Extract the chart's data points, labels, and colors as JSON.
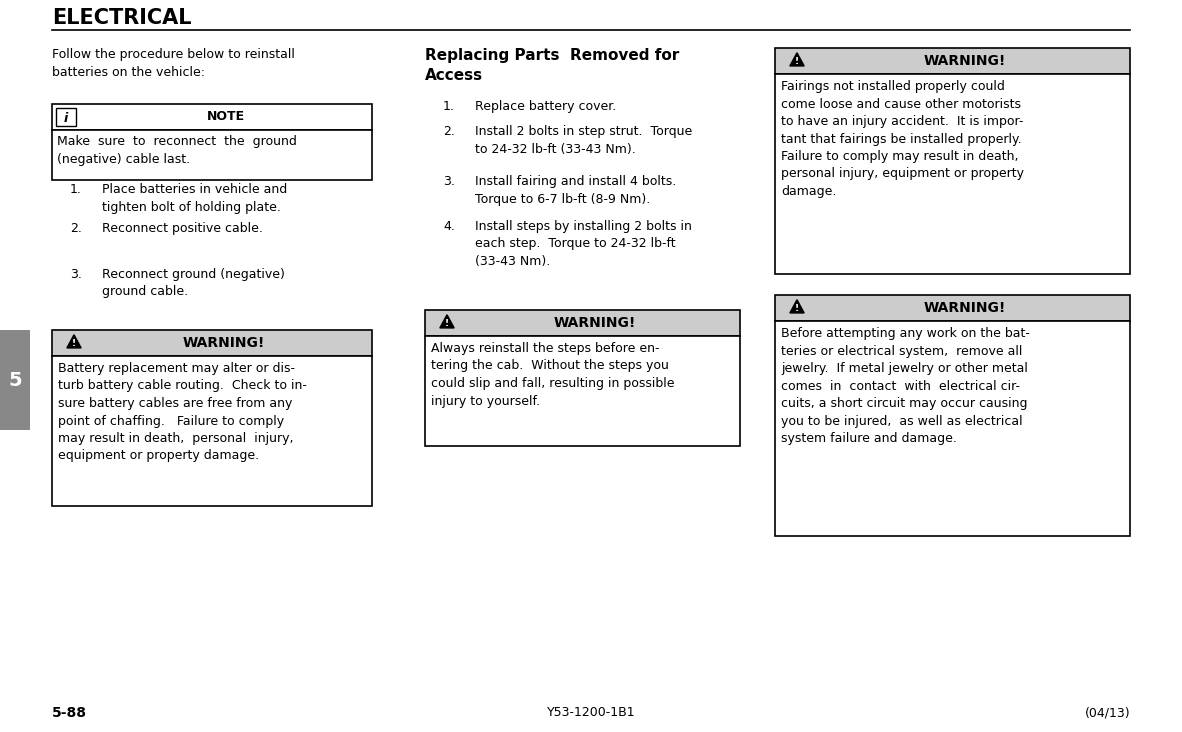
{
  "title": "ELECTRICAL",
  "page_num": "5-88",
  "doc_id": "Y53-1200-1B1",
  "doc_date": "(04/13)",
  "tab_number": "5",
  "bg_color": "#ffffff",
  "gray_header": "#cccccc",
  "border_color": "#000000",
  "warning1_body": "Battery replacement may alter or dis-\nturb battery cable routing.  Check to in-\nsure battery cables are free from any\npoint of chaffing.   Failure to comply\nmay result in death,  personal  injury,\nequipment or property damage.",
  "warning2_body": "Always reinstall the steps before en-\ntering the cab.  Without the steps you\ncould slip and fall, resulting in possible\ninjury to yourself.",
  "warning3_body": "Fairings not installed properly could\ncome loose and cause other motorists\nto have an injury accident.  It is impor-\ntant that fairings be installed properly.\nFailure to comply may result in death,\npersonal injury, equipment or property\ndamage.",
  "warning4_body": "Before attempting any work on the bat-\nteries or electrical system,  remove all\njewelry.  If metal jewelry or other metal\ncomes  in  contact  with  electrical cir-\ncuits, a short circuit may occur causing\nyou to be injured,  as well as electrical\nsystem failure and damage."
}
